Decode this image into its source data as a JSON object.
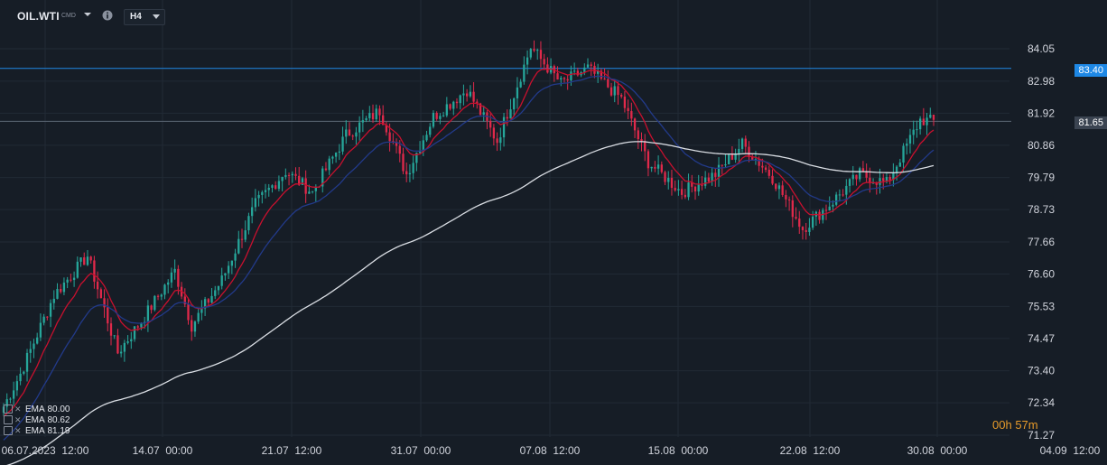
{
  "toolbar": {
    "symbol": "OIL.WTI",
    "symbol_sub": "CMD",
    "timeframe": "H4"
  },
  "price_labels": {
    "line_blue": "83.40",
    "current": "81.65"
  },
  "countdown": {
    "hours": "00h",
    "minutes": "57m"
  },
  "ema_legend": [
    {
      "name": "EMA",
      "value": "80.00"
    },
    {
      "name": "EMA",
      "value": "80.62"
    },
    {
      "name": "EMA",
      "value": "81.19"
    }
  ],
  "colors": {
    "background": "#161d26",
    "grid": "#212a35",
    "up": "#26a69a",
    "down": "#e0294a",
    "ema_fast": "#c8102e",
    "ema_mid": "#223a8a",
    "ema_slow": "#d9dde3",
    "horizontal_line": "#1e88e5",
    "current_line": "#5c6775",
    "countdown": "#e69a2a"
  },
  "chart_data": {
    "type": "candlestick",
    "y_ticks": [
      "84.05",
      "82.98",
      "81.92",
      "80.86",
      "79.79",
      "78.73",
      "77.66",
      "76.60",
      "75.53",
      "74.47",
      "73.40",
      "72.34",
      "71.27"
    ],
    "ylim": [
      70.8,
      85.2
    ],
    "x_ticks": [
      "06.07.2023  12:00",
      "14.07  00:00",
      "21.07  12:00",
      "31.07  00:00",
      "07.08  12:00",
      "15.08  00:00",
      "22.08  12:00",
      "30.08  00:00",
      "04.09  12:00"
    ],
    "horizontal_lines": [
      83.4,
      81.65
    ],
    "grid": true,
    "series_shape": [
      {
        "start": 72.0,
        "end": 73.3,
        "n": 6
      },
      {
        "start": 73.3,
        "end": 75.9,
        "n": 10
      },
      {
        "start": 75.9,
        "end": 77.2,
        "n": 10
      },
      {
        "start": 77.2,
        "end": 74.0,
        "n": 9
      },
      {
        "start": 74.0,
        "end": 75.2,
        "n": 8
      },
      {
        "start": 75.2,
        "end": 76.7,
        "n": 9
      },
      {
        "start": 76.7,
        "end": 74.9,
        "n": 5
      },
      {
        "start": 74.9,
        "end": 76.4,
        "n": 9
      },
      {
        "start": 76.4,
        "end": 78.9,
        "n": 10
      },
      {
        "start": 78.9,
        "end": 80.0,
        "n": 9
      },
      {
        "start": 80.0,
        "end": 79.3,
        "n": 8
      },
      {
        "start": 79.3,
        "end": 81.2,
        "n": 10
      },
      {
        "start": 81.2,
        "end": 82.0,
        "n": 10
      },
      {
        "start": 82.0,
        "end": 79.9,
        "n": 8
      },
      {
        "start": 79.9,
        "end": 81.8,
        "n": 8
      },
      {
        "start": 81.8,
        "end": 82.7,
        "n": 10
      },
      {
        "start": 82.7,
        "end": 81.0,
        "n": 9
      },
      {
        "start": 81.0,
        "end": 84.1,
        "n": 10
      },
      {
        "start": 84.1,
        "end": 82.9,
        "n": 9
      },
      {
        "start": 82.9,
        "end": 83.4,
        "n": 8
      },
      {
        "start": 83.4,
        "end": 82.4,
        "n": 10
      },
      {
        "start": 82.4,
        "end": 80.3,
        "n": 8
      },
      {
        "start": 80.3,
        "end": 79.3,
        "n": 10
      },
      {
        "start": 79.3,
        "end": 79.9,
        "n": 10
      },
      {
        "start": 79.9,
        "end": 80.9,
        "n": 8
      },
      {
        "start": 80.9,
        "end": 79.8,
        "n": 9
      },
      {
        "start": 79.8,
        "end": 78.1,
        "n": 9
      },
      {
        "start": 78.1,
        "end": 78.9,
        "n": 8
      },
      {
        "start": 78.9,
        "end": 79.9,
        "n": 9
      },
      {
        "start": 79.9,
        "end": 79.6,
        "n": 8
      },
      {
        "start": 79.6,
        "end": 81.7,
        "n": 10
      },
      {
        "start": 81.7,
        "end": 81.65,
        "n": 4
      }
    ],
    "ema_last": {
      "fast": 81.19,
      "mid": 80.62,
      "slow": 80.0
    }
  }
}
